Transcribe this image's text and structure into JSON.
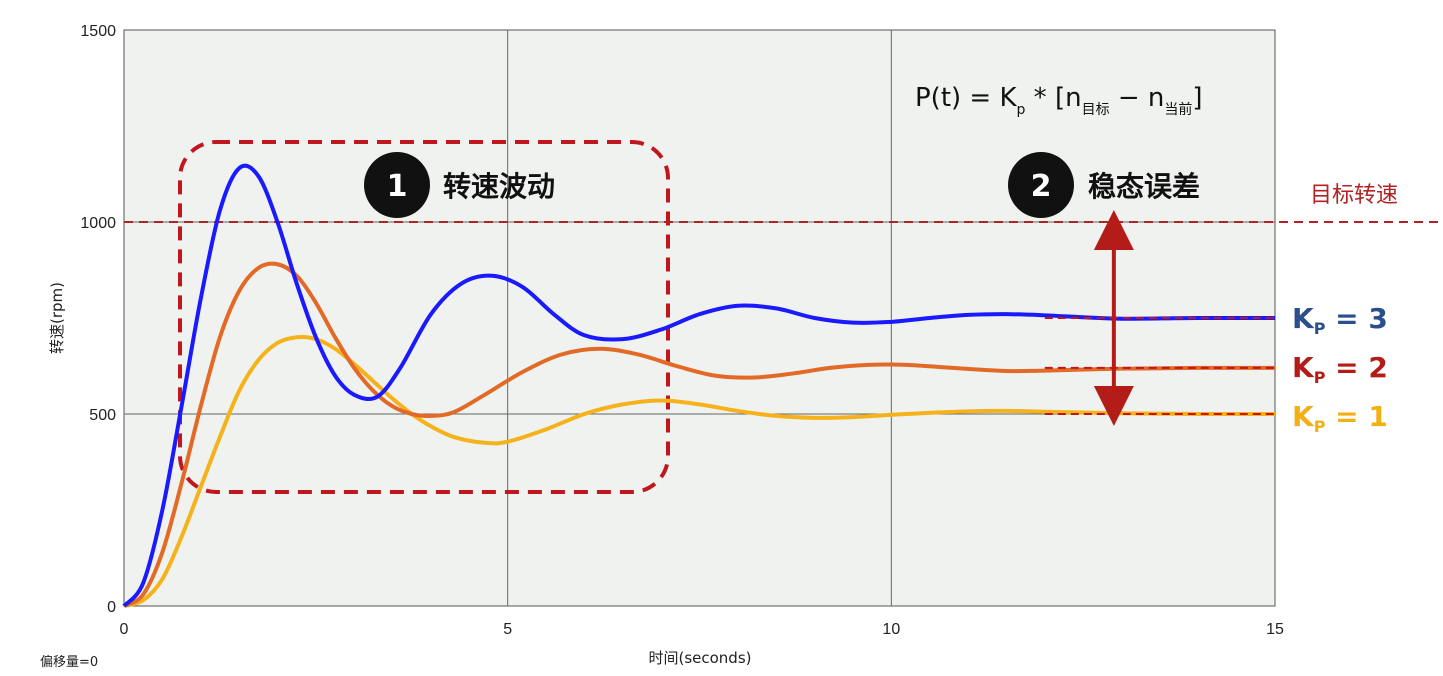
{
  "chart_data": {
    "type": "line",
    "xlabel": "时间(seconds)",
    "ylabel": "转速(rpm)",
    "xlim": [
      0,
      15
    ],
    "ylim": [
      0,
      1500
    ],
    "x_ticks": [
      "0",
      "5",
      "10",
      "15"
    ],
    "y_ticks": [
      "0",
      "500",
      "1000",
      "1500"
    ],
    "grid": true,
    "offset_label": "偏移量=0",
    "formula": {
      "lhs": "P(t) = K",
      "sub_p": "p",
      "mid": " * [n",
      "sub_target": "目标",
      "minus": " − n",
      "sub_current": "当前",
      "end": "]"
    },
    "target": {
      "value": 1000,
      "label": "目标转速"
    },
    "annotations": [
      {
        "number": "1",
        "text": "转速波动"
      },
      {
        "number": "2",
        "text": "稳态误差"
      }
    ],
    "series": [
      {
        "name": "KP = 3",
        "label_main": "K",
        "label_sub": "P",
        "label_rest": " = 3",
        "color": "#1a1aff",
        "label_color": "#2b4f8c",
        "final": 750,
        "points": [
          [
            0,
            0
          ],
          [
            0.25,
            60
          ],
          [
            0.5,
            250
          ],
          [
            0.75,
            520
          ],
          [
            1.0,
            800
          ],
          [
            1.25,
            1030
          ],
          [
            1.5,
            1140
          ],
          [
            1.75,
            1120
          ],
          [
            2.0,
            1000
          ],
          [
            2.25,
            840
          ],
          [
            2.5,
            700
          ],
          [
            2.75,
            600
          ],
          [
            3.0,
            550
          ],
          [
            3.3,
            545
          ],
          [
            3.6,
            620
          ],
          [
            4.0,
            760
          ],
          [
            4.4,
            840
          ],
          [
            4.8,
            860
          ],
          [
            5.2,
            830
          ],
          [
            5.6,
            760
          ],
          [
            6.0,
            705
          ],
          [
            6.5,
            695
          ],
          [
            7.0,
            720
          ],
          [
            7.5,
            760
          ],
          [
            8.0,
            782
          ],
          [
            8.5,
            775
          ],
          [
            9.0,
            750
          ],
          [
            9.5,
            738
          ],
          [
            10.0,
            740
          ],
          [
            10.5,
            750
          ],
          [
            11.0,
            758
          ],
          [
            11.5,
            760
          ],
          [
            12.0,
            757
          ],
          [
            12.5,
            752
          ],
          [
            13.0,
            748
          ],
          [
            14.0,
            750
          ],
          [
            15.0,
            750
          ]
        ]
      },
      {
        "name": "KP = 2",
        "label_main": "K",
        "label_sub": "P",
        "label_rest": " = 2",
        "color": "#e26a26",
        "label_color": "#b41c18",
        "final": 620,
        "points": [
          [
            0,
            0
          ],
          [
            0.25,
            30
          ],
          [
            0.5,
            140
          ],
          [
            0.75,
            320
          ],
          [
            1.0,
            520
          ],
          [
            1.25,
            700
          ],
          [
            1.5,
            820
          ],
          [
            1.75,
            880
          ],
          [
            2.0,
            890
          ],
          [
            2.25,
            860
          ],
          [
            2.5,
            790
          ],
          [
            2.75,
            700
          ],
          [
            3.0,
            620
          ],
          [
            3.25,
            560
          ],
          [
            3.5,
            520
          ],
          [
            3.75,
            500
          ],
          [
            4.0,
            495
          ],
          [
            4.3,
            505
          ],
          [
            4.7,
            550
          ],
          [
            5.2,
            610
          ],
          [
            5.7,
            655
          ],
          [
            6.2,
            670
          ],
          [
            6.7,
            655
          ],
          [
            7.2,
            625
          ],
          [
            7.7,
            600
          ],
          [
            8.2,
            595
          ],
          [
            8.7,
            605
          ],
          [
            9.2,
            620
          ],
          [
            9.7,
            628
          ],
          [
            10.2,
            628
          ],
          [
            10.8,
            620
          ],
          [
            11.5,
            612
          ],
          [
            12.0,
            613
          ],
          [
            13.0,
            618
          ],
          [
            14.0,
            620
          ],
          [
            15.0,
            620
          ]
        ]
      },
      {
        "name": "KP = 1",
        "label_main": "K",
        "label_sub": "P",
        "label_rest": " = 1",
        "color": "#f5b21b",
        "label_color": "#f2b015",
        "final": 500,
        "points": [
          [
            0,
            0
          ],
          [
            0.25,
            15
          ],
          [
            0.5,
            70
          ],
          [
            0.75,
            180
          ],
          [
            1.0,
            310
          ],
          [
            1.25,
            440
          ],
          [
            1.5,
            560
          ],
          [
            1.75,
            640
          ],
          [
            2.0,
            685
          ],
          [
            2.25,
            700
          ],
          [
            2.5,
            695
          ],
          [
            2.75,
            670
          ],
          [
            3.0,
            630
          ],
          [
            3.25,
            585
          ],
          [
            3.5,
            540
          ],
          [
            3.75,
            500
          ],
          [
            4.0,
            468
          ],
          [
            4.3,
            440
          ],
          [
            4.7,
            425
          ],
          [
            5.0,
            428
          ],
          [
            5.5,
            460
          ],
          [
            6.0,
            500
          ],
          [
            6.5,
            525
          ],
          [
            7.0,
            535
          ],
          [
            7.5,
            525
          ],
          [
            8.0,
            508
          ],
          [
            8.5,
            495
          ],
          [
            9.0,
            490
          ],
          [
            9.5,
            492
          ],
          [
            10.0,
            498
          ],
          [
            10.5,
            503
          ],
          [
            11.0,
            507
          ],
          [
            11.5,
            508
          ],
          [
            12.0,
            506
          ],
          [
            13.0,
            502
          ],
          [
            14.0,
            500
          ],
          [
            15.0,
            500
          ]
        ]
      }
    ]
  }
}
